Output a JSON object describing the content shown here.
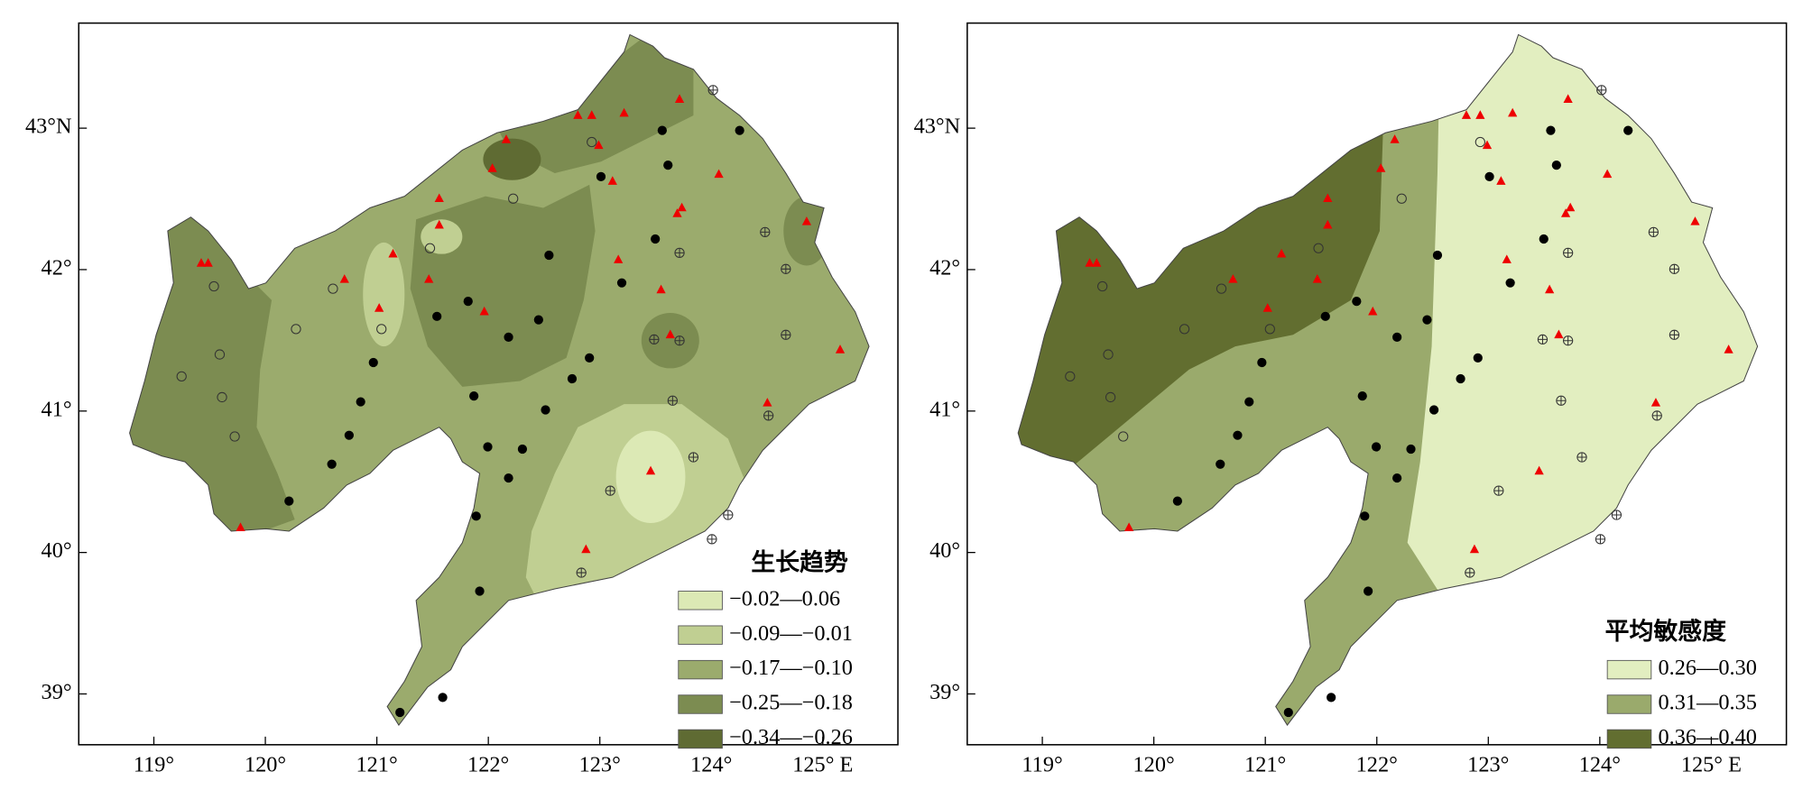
{
  "panels": [
    {
      "legend_title": "生长趋势",
      "legend": [
        {
          "label": "−0.02—0.06",
          "color": "#dce9b5"
        },
        {
          "label": "−0.09—−0.01",
          "color": "#c0cf92"
        },
        {
          "label": "−0.17—−0.10",
          "color": "#9bab6d"
        },
        {
          "label": "−0.25—−0.18",
          "color": "#7c8c51"
        },
        {
          "label": "−0.34—−0.26",
          "color": "#5f6b33"
        }
      ]
    },
    {
      "legend_title": "平均敏感度",
      "legend": [
        {
          "label": "0.26—0.30",
          "color": "#e2eec0"
        },
        {
          "label": "0.31—0.35",
          "color": "#9aaa6c"
        },
        {
          "label": "0.36—0.40",
          "color": "#626e30"
        }
      ]
    }
  ],
  "xticks": [
    {
      "value": 119,
      "label": "119°"
    },
    {
      "value": 120,
      "label": "120°"
    },
    {
      "value": 121,
      "label": "121°"
    },
    {
      "value": 122,
      "label": "122°"
    },
    {
      "value": 123,
      "label": "123°"
    },
    {
      "value": 124,
      "label": "124°"
    },
    {
      "value": 125,
      "label": "125° E"
    }
  ],
  "yticks": [
    {
      "value": 43,
      "label": "43°N"
    },
    {
      "value": 42,
      "label": "42°"
    },
    {
      "value": 41,
      "label": "41°"
    },
    {
      "value": 40,
      "label": "40°"
    },
    {
      "value": 39,
      "label": "39°"
    }
  ]
}
